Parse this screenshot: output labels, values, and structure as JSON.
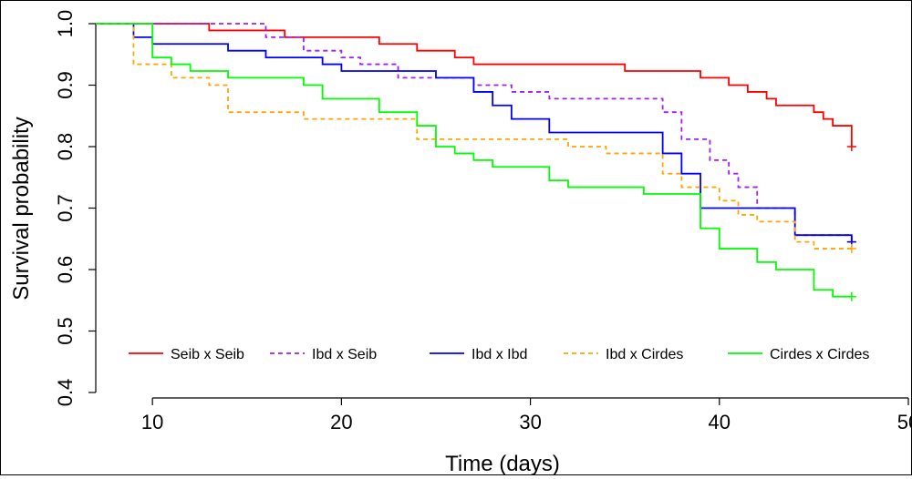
{
  "chart_data": {
    "type": "line",
    "title": "",
    "xlabel": "Time (days)",
    "ylabel": "Survival probability",
    "xlim": [
      7,
      50
    ],
    "ylim": [
      0.4,
      1.0
    ],
    "x_ticks": [
      10,
      20,
      30,
      40,
      50
    ],
    "y_ticks": [
      0.4,
      0.5,
      0.6,
      0.7,
      0.8,
      0.9,
      1.0
    ],
    "x_tick_labels": [
      "10",
      "20",
      "30",
      "40",
      "50"
    ],
    "y_tick_labels": [
      "0.4",
      "0.5",
      "0.6",
      "0.7",
      "0.8",
      "0.9",
      "1.0"
    ],
    "grid": false,
    "legend_position": "bottom",
    "series": [
      {
        "name": "Seib x Seib",
        "color": "#ff0000",
        "dash": "solid",
        "step": true,
        "censor_marks": [
          [
            47,
            0.8
          ]
        ],
        "points": [
          [
            7,
            1.0
          ],
          [
            13,
            0.989
          ],
          [
            17,
            0.978
          ],
          [
            22,
            0.967
          ],
          [
            24,
            0.956
          ],
          [
            26,
            0.945
          ],
          [
            27,
            0.934
          ],
          [
            35,
            0.923
          ],
          [
            39,
            0.912
          ],
          [
            40.5,
            0.9
          ],
          [
            41.5,
            0.889
          ],
          [
            42.5,
            0.878
          ],
          [
            43,
            0.867
          ],
          [
            45,
            0.856
          ],
          [
            45.5,
            0.845
          ],
          [
            46,
            0.834
          ],
          [
            47,
            0.8
          ]
        ]
      },
      {
        "name": "Ibd x Seib",
        "color": "#a020f0",
        "dash": "dashed",
        "step": true,
        "censor_marks": [
          [
            47,
            0.645
          ]
        ],
        "points": [
          [
            7,
            1.0
          ],
          [
            16,
            0.978
          ],
          [
            18,
            0.956
          ],
          [
            20,
            0.945
          ],
          [
            21,
            0.934
          ],
          [
            23,
            0.912
          ],
          [
            27,
            0.9
          ],
          [
            29,
            0.889
          ],
          [
            31,
            0.878
          ],
          [
            37,
            0.856
          ],
          [
            38,
            0.812
          ],
          [
            39.5,
            0.778
          ],
          [
            40.5,
            0.756
          ],
          [
            41,
            0.734
          ],
          [
            42,
            0.7
          ],
          [
            44,
            0.656
          ],
          [
            47,
            0.645
          ]
        ]
      },
      {
        "name": "Ibd x Ibd",
        "color": "#0000ff",
        "dash": "solid",
        "step": true,
        "censor_marks": [
          [
            47,
            0.645
          ]
        ],
        "points": [
          [
            7,
            1.0
          ],
          [
            9,
            0.978
          ],
          [
            10,
            0.967
          ],
          [
            14,
            0.956
          ],
          [
            16,
            0.945
          ],
          [
            19,
            0.934
          ],
          [
            20,
            0.923
          ],
          [
            25,
            0.912
          ],
          [
            27,
            0.889
          ],
          [
            28,
            0.867
          ],
          [
            29,
            0.845
          ],
          [
            31,
            0.823
          ],
          [
            37,
            0.789
          ],
          [
            38,
            0.756
          ],
          [
            39,
            0.7
          ],
          [
            44,
            0.656
          ],
          [
            47,
            0.645
          ]
        ]
      },
      {
        "name": "Ibd x Cirdes",
        "color": "#ffa500",
        "dash": "dashed",
        "step": true,
        "censor_marks": [
          [
            47,
            0.634
          ]
        ],
        "points": [
          [
            7,
            1.0
          ],
          [
            9,
            0.934
          ],
          [
            11,
            0.912
          ],
          [
            13,
            0.9
          ],
          [
            14,
            0.856
          ],
          [
            18,
            0.845
          ],
          [
            24,
            0.812
          ],
          [
            32,
            0.8
          ],
          [
            34,
            0.789
          ],
          [
            37,
            0.756
          ],
          [
            38,
            0.734
          ],
          [
            40,
            0.712
          ],
          [
            41,
            0.689
          ],
          [
            42,
            0.678
          ],
          [
            44,
            0.645
          ],
          [
            45,
            0.634
          ],
          [
            47,
            0.634
          ]
        ]
      },
      {
        "name": "Cirdes x Cirdes",
        "color": "#00ff00",
        "dash": "solid",
        "step": true,
        "censor_marks": [
          [
            47,
            0.556
          ]
        ],
        "points": [
          [
            7,
            1.0
          ],
          [
            10,
            0.945
          ],
          [
            11,
            0.934
          ],
          [
            12,
            0.923
          ],
          [
            14,
            0.912
          ],
          [
            18,
            0.9
          ],
          [
            19,
            0.878
          ],
          [
            22,
            0.856
          ],
          [
            24,
            0.834
          ],
          [
            25,
            0.8
          ],
          [
            26,
            0.789
          ],
          [
            27,
            0.778
          ],
          [
            28,
            0.767
          ],
          [
            31,
            0.745
          ],
          [
            32,
            0.734
          ],
          [
            36,
            0.723
          ],
          [
            39,
            0.667
          ],
          [
            40,
            0.634
          ],
          [
            42,
            0.612
          ],
          [
            43,
            0.6
          ],
          [
            45,
            0.567
          ],
          [
            46,
            0.556
          ],
          [
            47,
            0.556
          ]
        ]
      }
    ]
  }
}
